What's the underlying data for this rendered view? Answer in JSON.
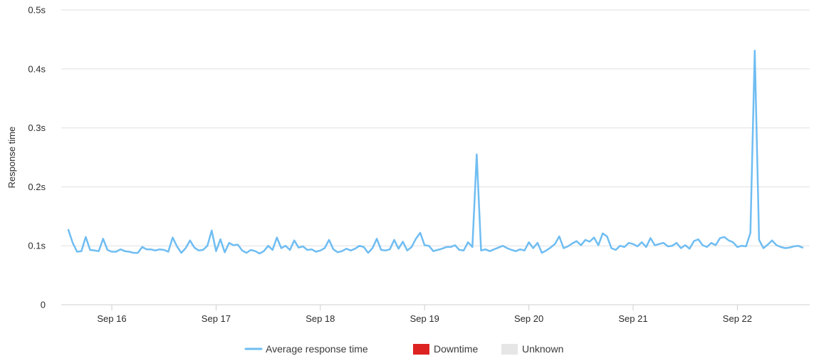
{
  "chart_data": {
    "type": "line",
    "ylabel": "Response time",
    "ylim": [
      0,
      0.5
    ],
    "y_ticks": [
      {
        "value": 0,
        "label": "0"
      },
      {
        "value": 0.1,
        "label": "0.1s"
      },
      {
        "value": 0.2,
        "label": "0.2s"
      },
      {
        "value": 0.3,
        "label": "0.3s"
      },
      {
        "value": 0.4,
        "label": "0.4s"
      },
      {
        "value": 0.5,
        "label": "0.5s"
      }
    ],
    "x_ticks": [
      "Sep 16",
      "Sep 17",
      "Sep 18",
      "Sep 19",
      "Sep 20",
      "Sep 21",
      "Sep 22"
    ],
    "x_start_label": "Sep 15 14:00",
    "x_interval_hours": 1,
    "grid": true,
    "legend_position": "bottom",
    "colors": {
      "line": "#6fbdf2",
      "downtime": "#dd2222",
      "unknown": "#e6e6e6",
      "grid": "#e0e0e0",
      "axis": "#cfcfcf"
    },
    "legend": [
      {
        "label": "Average response time",
        "kind": "line",
        "color": "#6fbdf2"
      },
      {
        "label": "Downtime",
        "kind": "box",
        "color": "#dd2222"
      },
      {
        "label": "Unknown",
        "kind": "box",
        "color": "#e6e6e6"
      }
    ],
    "series": [
      {
        "name": "Average response time",
        "values": [
          0.127,
          0.105,
          0.09,
          0.091,
          0.115,
          0.093,
          0.092,
          0.091,
          0.112,
          0.093,
          0.09,
          0.09,
          0.094,
          0.091,
          0.09,
          0.088,
          0.088,
          0.098,
          0.094,
          0.094,
          0.092,
          0.094,
          0.093,
          0.09,
          0.114,
          0.099,
          0.088,
          0.096,
          0.109,
          0.097,
          0.092,
          0.093,
          0.1,
          0.126,
          0.091,
          0.111,
          0.089,
          0.105,
          0.101,
          0.102,
          0.092,
          0.088,
          0.093,
          0.091,
          0.087,
          0.091,
          0.1,
          0.093,
          0.114,
          0.096,
          0.1,
          0.093,
          0.109,
          0.097,
          0.099,
          0.093,
          0.094,
          0.09,
          0.092,
          0.096,
          0.11,
          0.094,
          0.089,
          0.091,
          0.095,
          0.092,
          0.095,
          0.1,
          0.098,
          0.088,
          0.096,
          0.112,
          0.093,
          0.092,
          0.094,
          0.11,
          0.095,
          0.107,
          0.092,
          0.098,
          0.112,
          0.122,
          0.101,
          0.1,
          0.091,
          0.093,
          0.095,
          0.098,
          0.098,
          0.101,
          0.093,
          0.092,
          0.106,
          0.098,
          0.255,
          0.092,
          0.094,
          0.091,
          0.094,
          0.097,
          0.1,
          0.096,
          0.093,
          0.091,
          0.094,
          0.092,
          0.106,
          0.096,
          0.105,
          0.088,
          0.092,
          0.097,
          0.103,
          0.116,
          0.096,
          0.099,
          0.104,
          0.108,
          0.101,
          0.11,
          0.107,
          0.114,
          0.101,
          0.121,
          0.116,
          0.096,
          0.093,
          0.1,
          0.098,
          0.105,
          0.103,
          0.099,
          0.106,
          0.098,
          0.113,
          0.101,
          0.103,
          0.105,
          0.099,
          0.1,
          0.105,
          0.096,
          0.101,
          0.095,
          0.108,
          0.111,
          0.101,
          0.098,
          0.105,
          0.101,
          0.113,
          0.115,
          0.109,
          0.106,
          0.098,
          0.1,
          0.099,
          0.122,
          0.431,
          0.11,
          0.096,
          0.102,
          0.109,
          0.101,
          0.098,
          0.096,
          0.097,
          0.099,
          0.1,
          0.097
        ]
      }
    ]
  }
}
